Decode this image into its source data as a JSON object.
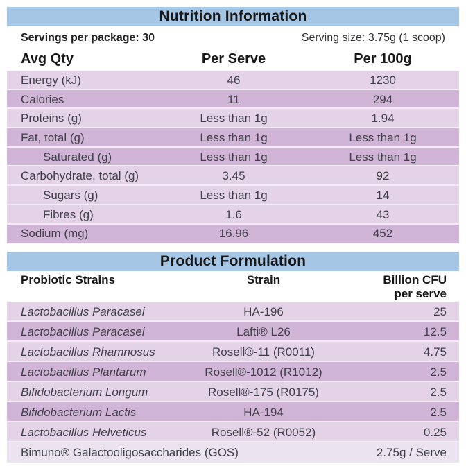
{
  "colors": {
    "header_blue": "#a6c6e5",
    "row_light": "#e4d2e7",
    "row_dark": "#d0b5d7",
    "row_extra_light": "#ece3f1"
  },
  "nutrition": {
    "title": "Nutrition Information",
    "servings_label": "Servings per package: 30",
    "serving_size_label": "Serving size: 3.75g (1 scoop)",
    "columns": [
      "Avg Qty",
      "Per Serve",
      "Per 100g"
    ],
    "rows": [
      {
        "label": "Energy (kJ)",
        "per_serve": "46",
        "per_100g": "1230",
        "shade": "light"
      },
      {
        "label": "Calories",
        "per_serve": "11",
        "per_100g": "294",
        "shade": "dark"
      },
      {
        "label": "Proteins (g)",
        "per_serve": "Less than 1g",
        "per_100g": "1.94",
        "shade": "light"
      },
      {
        "label": "Fat, total (g)",
        "per_serve": "Less than 1g",
        "per_100g": "Less than 1g",
        "shade": "dark"
      },
      {
        "label": "Saturated (g)",
        "per_serve": "Less than 1g",
        "per_100g": "Less than 1g",
        "shade": "dark"
      },
      {
        "label": "Carbohydrate, total (g)",
        "per_serve": "3.45",
        "per_100g": "92",
        "shade": "light"
      },
      {
        "label": "Sugars (g)",
        "per_serve": "Less than 1g",
        "per_100g": "14",
        "shade": "light"
      },
      {
        "label": "Fibres (g)",
        "per_serve": "1.6",
        "per_100g": "43",
        "shade": "light"
      },
      {
        "label": "Sodium (mg)",
        "per_serve": "16.96",
        "per_100g": "452",
        "shade": "dark"
      }
    ]
  },
  "formulation": {
    "title": "Product Formulation",
    "columns": {
      "strains": "Probiotic Strains",
      "strain": "Strain",
      "cfu_line1": "Billion CFU",
      "cfu_line2": "per serve"
    },
    "rows": [
      {
        "name": "Lactobacillus Paracasei",
        "strain": "HA-196",
        "cfu": "25",
        "shade": "light"
      },
      {
        "name": "Lactobacillus Paracasei",
        "strain": "Lafti® L26",
        "cfu": "12.5",
        "shade": "dark"
      },
      {
        "name": "Lactobacillus Rhamnosus",
        "strain": "Rosell®-11 (R0011)",
        "cfu": "4.75",
        "shade": "light"
      },
      {
        "name": "Lactobacillus Plantarum",
        "strain": "Rosell®-1012 (R1012)",
        "cfu": "2.5",
        "shade": "dark"
      },
      {
        "name": "Bifidobacterium Longum",
        "strain": "Rosell®-175 (R0175)",
        "cfu": "2.5",
        "shade": "light"
      },
      {
        "name": "Bifidobacterium Lactis",
        "strain": "HA-194",
        "cfu": "2.5",
        "shade": "dark"
      },
      {
        "name": "Lactobacillus Helveticus",
        "strain": "Rosell®-52 (R0052)",
        "cfu": "0.25",
        "shade": "light"
      }
    ],
    "footer_row": {
      "name": "Bimuno® Galactooligosaccharides (GOS)",
      "value": "2.75g / Serve",
      "shade": "xlight"
    }
  }
}
